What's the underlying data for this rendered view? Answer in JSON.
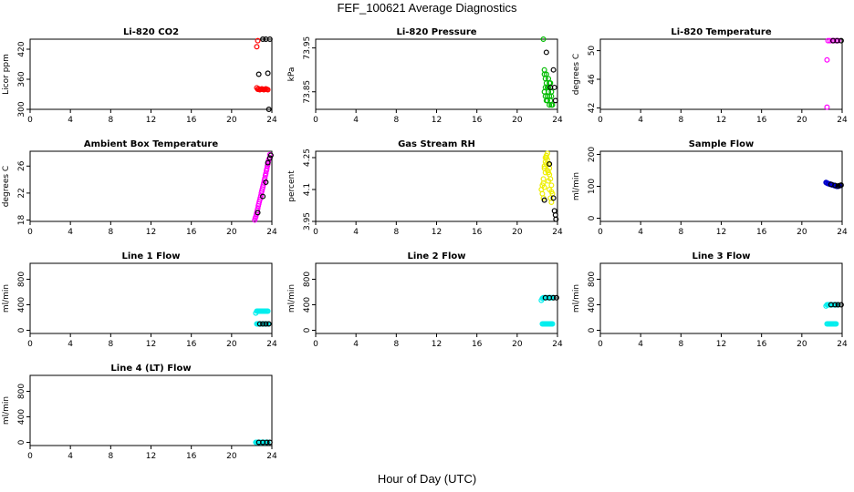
{
  "figure": {
    "title": "FEF_100621  Average Diagnostics",
    "xlabel": "Hour of Day (UTC)"
  },
  "chart_data": [
    {
      "type": "scatter",
      "title": "Li-820 CO2",
      "ylabel": "Licor ppm",
      "xlim": [
        0,
        24
      ],
      "ylim": [
        300,
        440
      ],
      "xticks": [
        "0",
        "4",
        "8",
        "12",
        "16",
        "20",
        "24"
      ],
      "yticks": [
        300,
        360,
        420
      ],
      "series": [
        {
          "color": "#ff0000",
          "x": [
            22.5,
            22.6,
            22.7,
            22.8,
            22.9,
            23.0,
            23.1,
            23.2,
            23.3,
            23.4,
            23.5,
            23.6,
            22.5,
            22.6
          ],
          "y": [
            343,
            340,
            341,
            339,
            340,
            341,
            340,
            339,
            340,
            341,
            340,
            339,
            425,
            437
          ]
        },
        {
          "color": "#000000",
          "x": [
            22.7,
            23.1,
            23.4,
            23.8,
            23.6,
            23.7
          ],
          "y": [
            370,
            440,
            440,
            440,
            372,
            300
          ]
        }
      ]
    },
    {
      "type": "scatter",
      "title": "Li-820 Pressure",
      "ylabel": "kPa",
      "xlim": [
        0,
        24
      ],
      "ylim": [
        73.81,
        73.97
      ],
      "xticks": [
        "0",
        "4",
        "8",
        "12",
        "16",
        "20",
        "24"
      ],
      "yticks": [
        73.85,
        73.95
      ],
      "series": [
        {
          "color": "#00bb00",
          "x": [
            22.6,
            22.7,
            22.8,
            22.9,
            23.0,
            23.1,
            23.2,
            23.3,
            23.4,
            23.5,
            22.7,
            22.8,
            22.9,
            23.0,
            23.1,
            23.2,
            23.3,
            23.4,
            22.8,
            23.0,
            23.2,
            23.4,
            22.9,
            23.1,
            23.3,
            22.7
          ],
          "y": [
            73.97,
            73.89,
            73.88,
            73.87,
            73.86,
            73.85,
            73.84,
            73.83,
            73.82,
            73.82,
            73.9,
            73.86,
            73.83,
            73.84,
            73.88,
            73.87,
            73.86,
            73.85,
            73.84,
            73.83,
            73.82,
            73.84,
            73.89,
            73.86,
            73.87,
            73.85
          ]
        },
        {
          "color": "#000000",
          "x": [
            22.9,
            23.3,
            23.6,
            23.7,
            23.8
          ],
          "y": [
            73.94,
            73.86,
            73.9,
            73.86,
            73.83
          ]
        }
      ]
    },
    {
      "type": "scatter",
      "title": "Li-820 Temperature",
      "ylabel": "degrees C",
      "xlim": [
        0,
        24
      ],
      "ylim": [
        41.8,
        51.6
      ],
      "xticks": [
        "0",
        "4",
        "8",
        "12",
        "16",
        "20",
        "24"
      ],
      "yticks": [
        42,
        46,
        50
      ],
      "series": [
        {
          "color": "#ff00ff",
          "x": [
            22.5,
            22.5,
            22.6,
            22.8,
            23.0,
            23.2,
            23.4,
            23.6
          ],
          "y": [
            42.1,
            48.7,
            51.4,
            51.4,
            51.4,
            51.4,
            51.4,
            51.4
          ]
        },
        {
          "color": "#000000",
          "x": [
            23.1,
            23.5,
            23.9
          ],
          "y": [
            51.4,
            51.4,
            51.4
          ]
        }
      ]
    },
    {
      "type": "scatter",
      "title": "Ambient Box Temperature",
      "ylabel": "degrees C",
      "xlim": [
        0,
        24
      ],
      "ylim": [
        17.8,
        28.2
      ],
      "xticks": [
        "0",
        "4",
        "8",
        "12",
        "16",
        "20",
        "24"
      ],
      "yticks": [
        18,
        22,
        26
      ],
      "series": [
        {
          "color": "#ff00ff",
          "x": [
            22.3,
            22.4,
            22.5,
            22.6,
            22.7,
            22.8,
            22.9,
            23.0,
            23.1,
            23.2,
            23.3,
            23.4,
            23.5,
            23.6,
            23.7,
            23.8,
            22.35,
            22.45,
            22.55,
            22.65,
            22.75,
            22.85,
            22.95,
            23.05,
            23.15,
            23.25,
            23.35,
            23.45,
            23.55,
            23.65
          ],
          "y": [
            18.0,
            18.5,
            19.1,
            19.7,
            20.4,
            21.0,
            21.6,
            22.3,
            22.9,
            23.5,
            24.2,
            24.9,
            25.6,
            26.3,
            27.0,
            27.7,
            18.3,
            18.8,
            19.4,
            20.1,
            20.7,
            21.3,
            22.0,
            22.6,
            23.2,
            23.9,
            24.6,
            25.3,
            26.0,
            26.7
          ]
        },
        {
          "color": "#000000",
          "x": [
            22.6,
            23.1,
            23.4,
            23.6,
            23.8,
            23.9
          ],
          "y": [
            19.1,
            21.5,
            23.6,
            26.5,
            27.2,
            27.6
          ]
        }
      ]
    },
    {
      "type": "scatter",
      "title": "Gas Stream RH",
      "ylabel": "percent",
      "xlim": [
        0,
        24
      ],
      "ylim": [
        3.95,
        4.28
      ],
      "xticks": [
        "0",
        "4",
        "8",
        "12",
        "16",
        "20",
        "24"
      ],
      "yticks": [
        3.95,
        4.1,
        4.25
      ],
      "series": [
        {
          "color": "#eeee00",
          "x": [
            22.4,
            22.5,
            22.6,
            22.7,
            22.8,
            22.9,
            23.0,
            23.1,
            23.2,
            23.3,
            23.4,
            23.5,
            22.5,
            22.6,
            22.7,
            22.8,
            22.9,
            23.0,
            23.1,
            23.2,
            23.3,
            23.4,
            22.6,
            22.8,
            23.0,
            23.2,
            23.4,
            22.7,
            22.9,
            23.1
          ],
          "y": [
            4.1,
            4.12,
            4.15,
            4.2,
            4.25,
            4.26,
            4.24,
            4.22,
            4.2,
            4.15,
            4.12,
            4.08,
            4.08,
            4.06,
            4.11,
            4.18,
            4.22,
            4.19,
            4.14,
            4.1,
            4.06,
            4.04,
            4.13,
            4.23,
            4.27,
            4.17,
            4.09,
            4.21,
            4.25,
            4.18
          ]
        },
        {
          "color": "#000000",
          "x": [
            22.7,
            23.2,
            23.6,
            23.8,
            23.7,
            23.85
          ],
          "y": [
            4.05,
            4.22,
            4.06,
            3.98,
            4.0,
            3.96
          ]
        }
      ]
    },
    {
      "type": "scatter",
      "title": "Sample Flow",
      "ylabel": "ml/min",
      "xlim": [
        0,
        24
      ],
      "ylim": [
        -10,
        210
      ],
      "xticks": [
        "0",
        "4",
        "8",
        "12",
        "16",
        "20",
        "24"
      ],
      "yticks": [
        0,
        100,
        200
      ],
      "series": [
        {
          "color": "#0000cc",
          "x": [
            22.4,
            22.5,
            22.6,
            22.7,
            22.8,
            22.9,
            23.0,
            23.1,
            23.2,
            23.3,
            23.4,
            23.5,
            23.6,
            23.7,
            23.8,
            22.45,
            22.65,
            22.85,
            23.05,
            23.25,
            23.45,
            23.65
          ],
          "y": [
            112,
            110,
            109,
            108,
            107,
            106,
            105,
            104,
            103,
            102,
            101,
            100,
            100,
            101,
            102,
            111,
            108,
            106,
            104,
            102,
            100,
            101
          ]
        },
        {
          "color": "#000000",
          "x": [
            22.9,
            23.3,
            23.6,
            23.8,
            23.9
          ],
          "y": [
            106,
            103,
            101,
            103,
            104
          ]
        }
      ]
    },
    {
      "type": "scatter",
      "title": "Line 1 Flow",
      "ylabel": "ml/min",
      "xlim": [
        0,
        24
      ],
      "ylim": [
        -50,
        1050
      ],
      "xticks": [
        "0",
        "4",
        "8",
        "12",
        "16",
        "20",
        "24"
      ],
      "yticks": [
        0,
        400,
        800
      ],
      "series": [
        {
          "color": "#00eeee",
          "x": [
            22.4,
            22.5,
            22.6,
            22.7,
            22.8,
            22.9,
            23.0,
            23.1,
            23.2,
            23.3,
            23.4,
            23.5,
            23.6,
            22.5,
            22.6,
            22.7,
            22.8,
            22.9,
            23.0,
            23.1,
            23.2,
            23.3,
            23.4,
            23.5,
            23.6
          ],
          "y": [
            270,
            300,
            300,
            300,
            300,
            300,
            300,
            300,
            300,
            300,
            300,
            300,
            300,
            100,
            100,
            100,
            100,
            100,
            100,
            100,
            100,
            100,
            100,
            100,
            100
          ]
        },
        {
          "color": "#000000",
          "x": [
            22.8,
            23.1,
            23.4,
            23.7
          ],
          "y": [
            100,
            100,
            100,
            100
          ]
        }
      ]
    },
    {
      "type": "scatter",
      "title": "Line 2 Flow",
      "ylabel": "ml/min",
      "xlim": [
        0,
        24
      ],
      "ylim": [
        -50,
        1050
      ],
      "xticks": [
        "0",
        "4",
        "8",
        "12",
        "16",
        "20",
        "24"
      ],
      "yticks": [
        0,
        400,
        800
      ],
      "series": [
        {
          "color": "#00eeee",
          "x": [
            22.4,
            22.5,
            22.6,
            22.7,
            22.8,
            22.9,
            23.0,
            23.1,
            23.2,
            23.3,
            23.4,
            23.5,
            23.6,
            22.5,
            22.6,
            22.7,
            22.8,
            22.9,
            23.0,
            23.1,
            23.2,
            23.3,
            23.4,
            23.5
          ],
          "y": [
            470,
            500,
            510,
            510,
            510,
            510,
            510,
            510,
            510,
            510,
            510,
            510,
            510,
            100,
            100,
            100,
            100,
            100,
            100,
            100,
            100,
            100,
            100,
            100
          ]
        },
        {
          "color": "#000000",
          "x": [
            22.8,
            23.2,
            23.6,
            23.9
          ],
          "y": [
            510,
            510,
            510,
            510
          ]
        }
      ]
    },
    {
      "type": "scatter",
      "title": "Line 3 Flow",
      "ylabel": "ml/min",
      "xlim": [
        0,
        24
      ],
      "ylim": [
        -50,
        1050
      ],
      "xticks": [
        "0",
        "4",
        "8",
        "12",
        "16",
        "20",
        "24"
      ],
      "yticks": [
        0,
        400,
        800
      ],
      "series": [
        {
          "color": "#00eeee",
          "x": [
            22.4,
            22.5,
            22.6,
            22.7,
            22.8,
            22.9,
            23.0,
            23.1,
            23.2,
            23.3,
            23.4,
            23.5,
            23.6,
            22.5,
            22.6,
            22.7,
            22.8,
            22.9,
            23.0,
            23.1,
            23.2,
            23.3,
            23.4
          ],
          "y": [
            380,
            400,
            400,
            400,
            400,
            400,
            400,
            400,
            400,
            400,
            400,
            400,
            400,
            100,
            100,
            100,
            100,
            100,
            100,
            100,
            100,
            100,
            100
          ]
        },
        {
          "color": "#000000",
          "x": [
            22.9,
            23.3,
            23.6,
            23.9
          ],
          "y": [
            400,
            400,
            400,
            400
          ]
        }
      ]
    },
    {
      "type": "scatter",
      "title": "Line 4 (LT) Flow",
      "ylabel": "ml/min",
      "xlim": [
        0,
        24
      ],
      "ylim": [
        -50,
        1050
      ],
      "xticks": [
        "0",
        "4",
        "8",
        "12",
        "16",
        "20",
        "24"
      ],
      "yticks": [
        0,
        400,
        800
      ],
      "series": [
        {
          "color": "#00eeee",
          "x": [
            22.4,
            22.5,
            22.6,
            22.7,
            22.8,
            22.9,
            23.0,
            23.1,
            23.2,
            23.3,
            23.4,
            23.5,
            23.6
          ],
          "y": [
            0,
            0,
            0,
            0,
            0,
            0,
            0,
            0,
            0,
            0,
            0,
            0,
            0
          ]
        },
        {
          "color": "#000000",
          "x": [
            22.7,
            23.1,
            23.5,
            23.8
          ],
          "y": [
            0,
            0,
            0,
            0
          ]
        }
      ]
    }
  ]
}
